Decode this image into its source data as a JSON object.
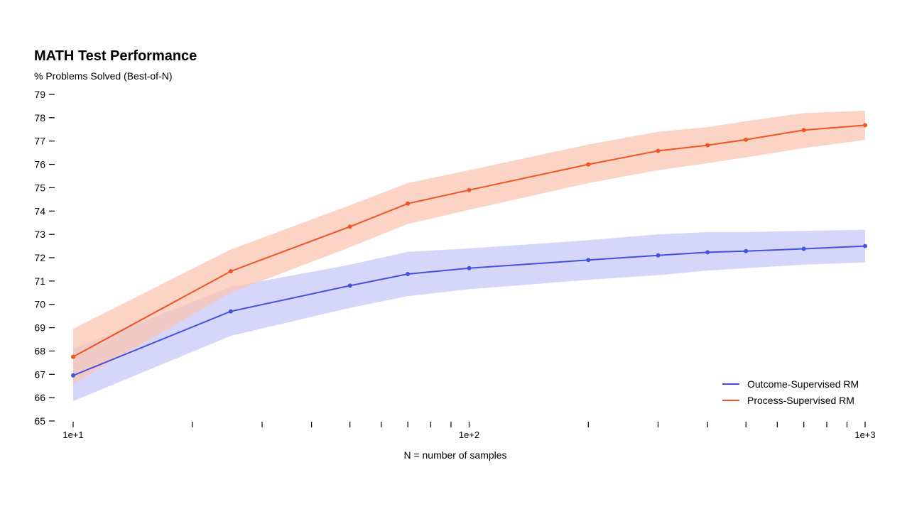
{
  "chart_data": {
    "type": "line",
    "title": "MATH Test Performance",
    "ylabel": "% Problems Solved (Best-of-N)",
    "xlabel": "N = number of samples",
    "xscale": "log",
    "xlim": [
      10,
      1000
    ],
    "ylim": [
      65,
      79
    ],
    "yticks": [
      65,
      66,
      67,
      68,
      69,
      70,
      71,
      72,
      73,
      74,
      75,
      76,
      77,
      78,
      79
    ],
    "xticks_major": [
      {
        "value": 10,
        "label": "1e+1"
      },
      {
        "value": 100,
        "label": "1e+2"
      },
      {
        "value": 1000,
        "label": "1e+3"
      }
    ],
    "xticks_minor": [
      20,
      30,
      40,
      50,
      60,
      70,
      80,
      90,
      200,
      300,
      400,
      500,
      600,
      700,
      800,
      900
    ],
    "grid": false,
    "legend_position": "bottom-right",
    "series": [
      {
        "name": "Outcome-Supervised RM",
        "color": "#4452dd",
        "band_color": "#c8c8fa",
        "x": [
          10,
          25,
          50,
          70,
          100,
          200,
          300,
          400,
          500,
          700,
          1000
        ],
        "values": [
          66.95,
          69.7,
          70.8,
          71.3,
          71.55,
          71.9,
          72.1,
          72.23,
          72.28,
          72.38,
          72.5
        ],
        "lower": [
          65.85,
          68.65,
          69.85,
          70.35,
          70.65,
          71.05,
          71.25,
          71.45,
          71.55,
          71.7,
          71.8
        ],
        "upper": [
          68.1,
          70.75,
          71.7,
          72.25,
          72.4,
          72.75,
          73.0,
          73.1,
          73.1,
          73.15,
          73.2
        ]
      },
      {
        "name": "Process-Supervised RM",
        "color": "#f05423",
        "band_color": "#fbc5b3",
        "x": [
          10,
          25,
          50,
          70,
          100,
          200,
          300,
          400,
          500,
          700,
          1000
        ],
        "values": [
          67.75,
          71.42,
          73.33,
          74.32,
          74.9,
          76.0,
          76.58,
          76.82,
          77.06,
          77.47,
          77.68
        ],
        "lower": [
          66.6,
          70.5,
          72.45,
          73.45,
          74.05,
          75.2,
          75.75,
          76.05,
          76.3,
          76.7,
          77.05
        ],
        "upper": [
          68.95,
          72.35,
          74.25,
          75.2,
          75.75,
          76.85,
          77.4,
          77.6,
          77.85,
          78.2,
          78.3
        ]
      }
    ]
  }
}
